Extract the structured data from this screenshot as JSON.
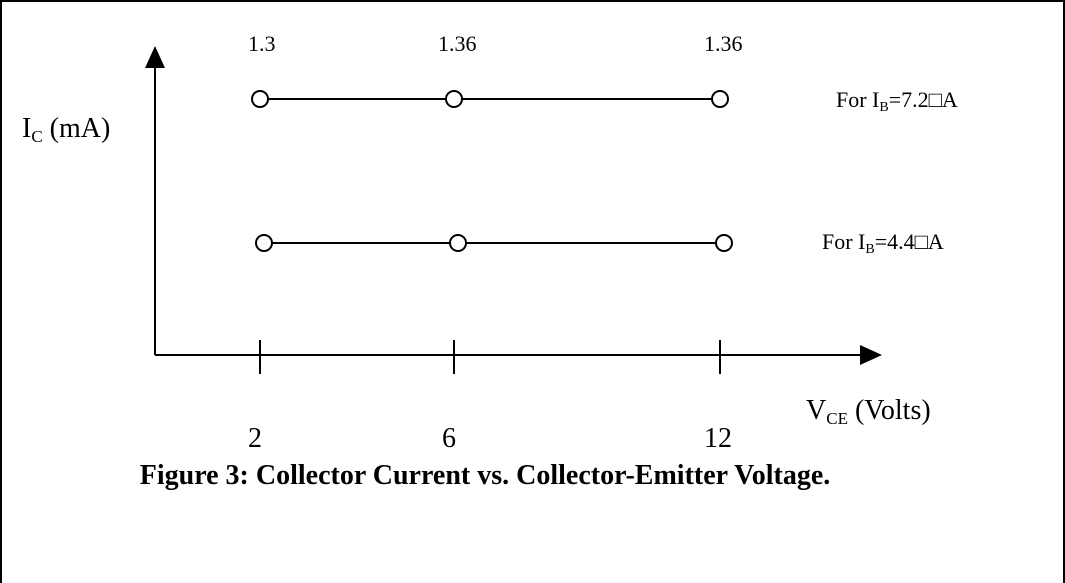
{
  "chart_data": {
    "type": "line",
    "title": "",
    "caption": "Figure 3: Collector Current vs. Collector-Emitter Voltage.",
    "xlabel": {
      "main": "V",
      "sub": "CE",
      "rest": " (Volts)"
    },
    "ylabel": {
      "main": "I",
      "sub": "C",
      "rest": " (mA)"
    },
    "x_ticks": [
      "2",
      "6",
      "12"
    ],
    "x": [
      2,
      6,
      12
    ],
    "top_value_labels": [
      "1.3",
      "1.36",
      "1.36"
    ],
    "series": [
      {
        "label": {
          "prefix": "For I",
          "sub": "B",
          "rest": "=7.2□A"
        },
        "values": [
          1.3,
          1.36,
          1.36
        ]
      },
      {
        "label": {
          "prefix": "For I",
          "sub": "B",
          "rest": "=4.4□A"
        },
        "values": [
          null,
          null,
          null
        ]
      }
    ],
    "grid": false,
    "marker": "open-circle",
    "colors": {
      "line": "#000000",
      "marker_fill": "#ffffff"
    }
  }
}
